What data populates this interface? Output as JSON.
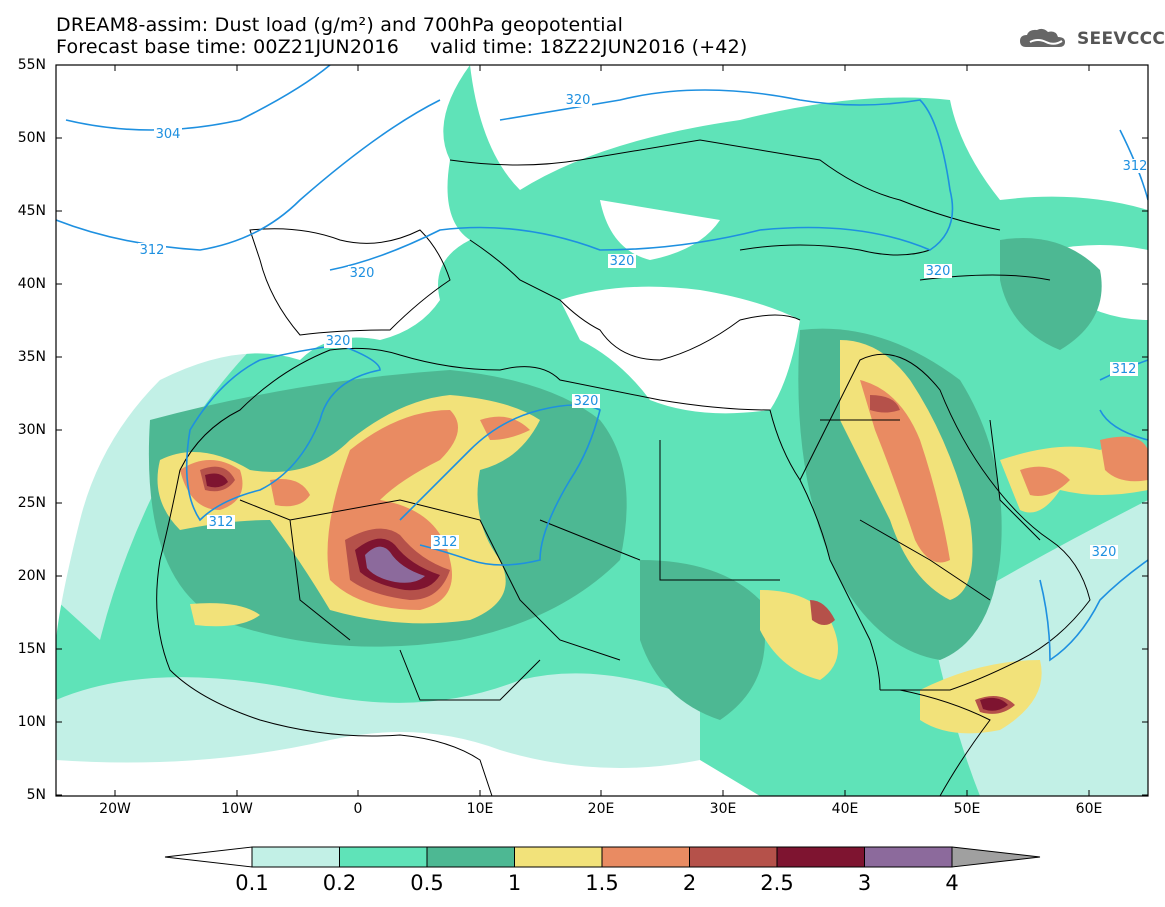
{
  "header": {
    "line1": "DREAM8-assim: Dust load (g/m²) and 700hPa geopotential",
    "line2": "Forecast base time: 00Z21JUN2016     valid time: 18Z22JUN2016 (+42)"
  },
  "logo": {
    "text": "SEEVCCC",
    "icon": "cloud-logo-icon"
  },
  "map": {
    "lat_labels": [
      "55N",
      "50N",
      "45N",
      "40N",
      "35N",
      "30N",
      "25N",
      "20N",
      "15N",
      "10N",
      "5N"
    ],
    "lon_labels": [
      "20W",
      "10W",
      "0",
      "10E",
      "20E",
      "30E",
      "40E",
      "50E",
      "60E"
    ],
    "contour_labels": [
      "304",
      "320",
      "312",
      "320",
      "320",
      "320",
      "320",
      "320",
      "312",
      "312",
      "312",
      "320"
    ]
  },
  "colorbar": {
    "labels": [
      "0.1",
      "0.2",
      "0.5",
      "1",
      "1.5",
      "2",
      "2.5",
      "3",
      "4"
    ],
    "colors": [
      "#ffffff",
      "#c2f0e6",
      "#5fe3b8",
      "#4db893",
      "#f2e27a",
      "#e98b62",
      "#b5514a",
      "#7e1430",
      "#8c6a9c",
      "#a0a0a0"
    ]
  }
}
